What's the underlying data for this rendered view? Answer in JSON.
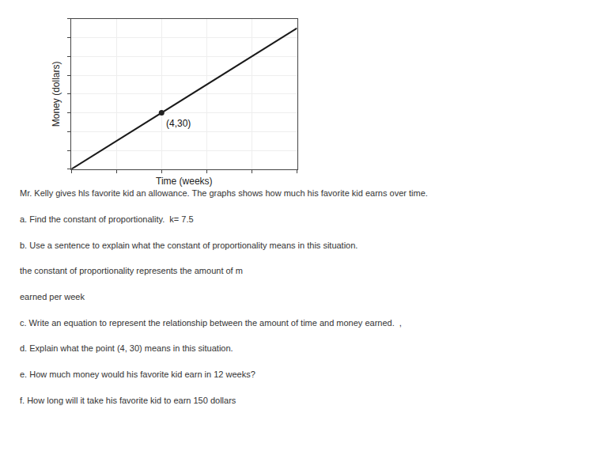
{
  "chart_data": {
    "type": "line",
    "xlabel": "Time (weeks)",
    "ylabel": "Money (dollars)",
    "x": [
      0,
      10
    ],
    "values": [
      0,
      75
    ],
    "color": "#1a1a1a",
    "xlim": [
      0,
      10
    ],
    "ylim": [
      0,
      80
    ],
    "xticks": [
      0,
      2,
      4,
      6,
      8,
      10
    ],
    "yticks": [
      0,
      10,
      20,
      30,
      40,
      50,
      60,
      70,
      80
    ],
    "grid": true,
    "tick_labels": false,
    "annotations": [
      {
        "x": 4,
        "y": 30,
        "text": "(4,30)",
        "color": "#222222"
      },
      {
        "text": "Mr. Kelly gives hls favorite kid an allowance. The graphs shows how much his favorite kid earns over time."
      },
      {
        "text": "a. Find the constant of proportionality.  k= 7.5"
      },
      {
        "text": "b. Use a sentence to explain what the constant of proportionality means in this situation."
      },
      {
        "text": "the constant of proportionality represents the amount of m"
      },
      {
        "text": "earned per week"
      },
      {
        "text": "c. Write an equation to represent the relationship between the amount of time and money earned.  ,"
      },
      {
        "text": "d. Explain what the point (4, 30) means in this situation."
      },
      {
        "text": "e. How much money would his favorite kid earn in 12 weeks?"
      },
      {
        "text": "f. How long will it take his favorite kid to earn 150 dollars"
      }
    ]
  }
}
